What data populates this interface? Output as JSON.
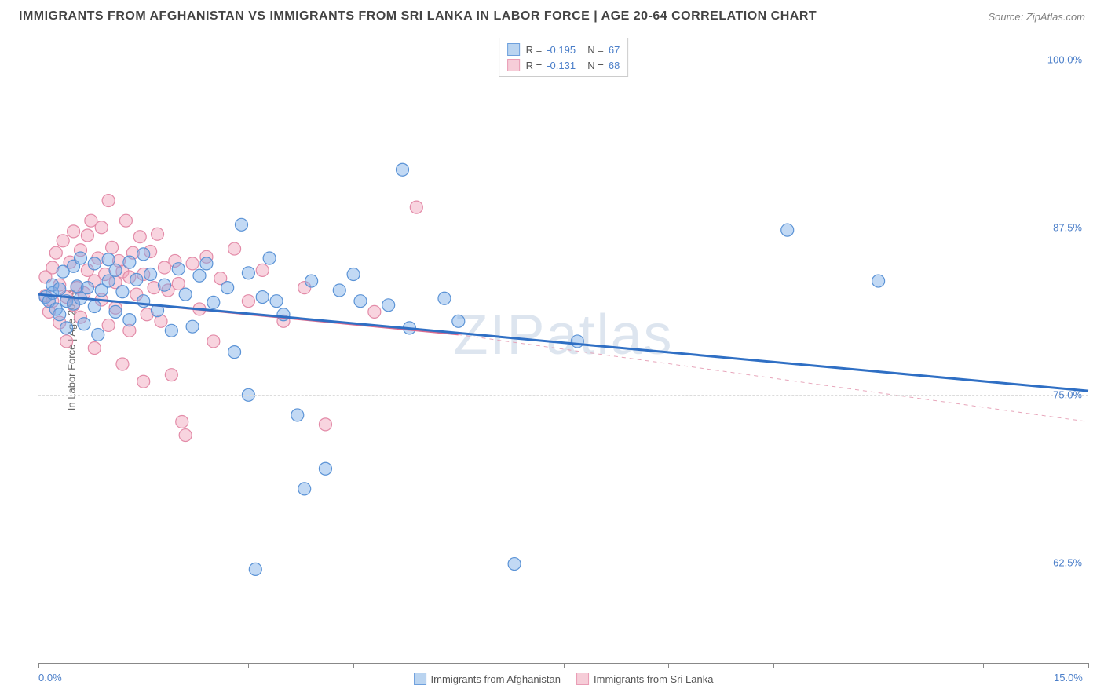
{
  "title": "IMMIGRANTS FROM AFGHANISTAN VS IMMIGRANTS FROM SRI LANKA IN LABOR FORCE | AGE 20-64 CORRELATION CHART",
  "source": "Source: ZipAtlas.com",
  "y_axis_label": "In Labor Force | Age 20-64",
  "watermark": "ZIPatlas",
  "chart": {
    "type": "scatter",
    "x_range": [
      0,
      15
    ],
    "y_range": [
      55,
      102
    ],
    "x_ticks": [
      0,
      1.5,
      3.0,
      4.5,
      6.0,
      7.5,
      9.0,
      10.5,
      12.0,
      13.5,
      15.0
    ],
    "x_tick_labels": {
      "0": "0.0%",
      "15": "15.0%"
    },
    "y_gridlines": [
      62.5,
      75.0,
      87.5,
      100.0
    ],
    "y_tick_labels": [
      "62.5%",
      "75.0%",
      "87.5%",
      "100.0%"
    ],
    "background_color": "#ffffff",
    "grid_color": "#dcdcdc",
    "axis_color": "#888888",
    "marker_radius": 8,
    "marker_opacity": 0.55
  },
  "series": [
    {
      "name": "Immigrants from Afghanistan",
      "color_fill": "rgba(120,170,230,0.45)",
      "color_stroke": "#5b93d6",
      "legend_swatch_fill": "#bad4f0",
      "legend_swatch_stroke": "#6ea0dd",
      "R": "-0.195",
      "N": "67",
      "trend": {
        "x1": 0,
        "y1": 82.5,
        "x2": 15,
        "y2": 75.3,
        "width": 3,
        "style": "solid",
        "color": "#2f6fc4"
      },
      "points": [
        [
          0.1,
          82.3
        ],
        [
          0.15,
          82.0
        ],
        [
          0.2,
          82.6
        ],
        [
          0.2,
          83.2
        ],
        [
          0.25,
          81.4
        ],
        [
          0.3,
          82.9
        ],
        [
          0.3,
          81.0
        ],
        [
          0.35,
          84.2
        ],
        [
          0.4,
          82.0
        ],
        [
          0.4,
          80.0
        ],
        [
          0.5,
          84.6
        ],
        [
          0.5,
          81.8
        ],
        [
          0.55,
          83.1
        ],
        [
          0.6,
          85.2
        ],
        [
          0.6,
          82.2
        ],
        [
          0.65,
          80.3
        ],
        [
          0.7,
          83.0
        ],
        [
          0.8,
          84.8
        ],
        [
          0.8,
          81.6
        ],
        [
          0.85,
          79.5
        ],
        [
          0.9,
          82.8
        ],
        [
          1.0,
          85.1
        ],
        [
          1.0,
          83.5
        ],
        [
          1.1,
          84.3
        ],
        [
          1.1,
          81.2
        ],
        [
          1.2,
          82.7
        ],
        [
          1.3,
          84.9
        ],
        [
          1.3,
          80.6
        ],
        [
          1.4,
          83.6
        ],
        [
          1.5,
          85.5
        ],
        [
          1.5,
          82.0
        ],
        [
          1.6,
          84.0
        ],
        [
          1.7,
          81.3
        ],
        [
          1.8,
          83.2
        ],
        [
          1.9,
          79.8
        ],
        [
          2.0,
          84.4
        ],
        [
          2.1,
          82.5
        ],
        [
          2.2,
          80.1
        ],
        [
          2.3,
          83.9
        ],
        [
          2.4,
          84.8
        ],
        [
          2.5,
          81.9
        ],
        [
          2.7,
          83.0
        ],
        [
          2.8,
          78.2
        ],
        [
          2.9,
          87.7
        ],
        [
          3.0,
          75.0
        ],
        [
          3.0,
          84.1
        ],
        [
          3.1,
          62.0
        ],
        [
          3.2,
          82.3
        ],
        [
          3.3,
          85.2
        ],
        [
          3.5,
          81.0
        ],
        [
          3.7,
          73.5
        ],
        [
          3.8,
          68.0
        ],
        [
          3.9,
          83.5
        ],
        [
          4.1,
          69.5
        ],
        [
          4.3,
          82.8
        ],
        [
          4.5,
          84.0
        ],
        [
          4.6,
          82.0
        ],
        [
          5.0,
          81.7
        ],
        [
          5.2,
          91.8
        ],
        [
          5.3,
          80.0
        ],
        [
          5.8,
          82.2
        ],
        [
          6.0,
          80.5
        ],
        [
          6.8,
          62.4
        ],
        [
          7.7,
          79.0
        ],
        [
          10.7,
          87.3
        ],
        [
          12.0,
          83.5
        ],
        [
          3.4,
          82.0
        ]
      ]
    },
    {
      "name": "Immigrants from Sri Lanka",
      "color_fill": "rgba(240,160,185,0.45)",
      "color_stroke": "#e38ba8",
      "legend_swatch_fill": "#f6cdd8",
      "legend_swatch_stroke": "#e99cb5",
      "R": "-0.131",
      "N": "68",
      "trend_solid": {
        "x1": 0,
        "y1": 82.5,
        "x2": 6.0,
        "y2": 79.5,
        "width": 2,
        "color": "#d96b8f"
      },
      "trend_dash": {
        "x1": 6.0,
        "y1": 79.5,
        "x2": 15,
        "y2": 73.0,
        "width": 1,
        "color": "#e7a5ba"
      },
      "points": [
        [
          0.1,
          82.4
        ],
        [
          0.1,
          83.8
        ],
        [
          0.15,
          81.2
        ],
        [
          0.2,
          84.5
        ],
        [
          0.2,
          82.0
        ],
        [
          0.25,
          85.6
        ],
        [
          0.3,
          80.4
        ],
        [
          0.3,
          83.2
        ],
        [
          0.35,
          86.5
        ],
        [
          0.4,
          82.3
        ],
        [
          0.4,
          79.0
        ],
        [
          0.45,
          84.9
        ],
        [
          0.5,
          81.7
        ],
        [
          0.5,
          87.2
        ],
        [
          0.55,
          83.0
        ],
        [
          0.6,
          85.8
        ],
        [
          0.6,
          80.8
        ],
        [
          0.65,
          82.6
        ],
        [
          0.7,
          84.3
        ],
        [
          0.7,
          86.9
        ],
        [
          0.75,
          88.0
        ],
        [
          0.8,
          83.5
        ],
        [
          0.8,
          78.5
        ],
        [
          0.85,
          85.2
        ],
        [
          0.9,
          87.5
        ],
        [
          0.9,
          82.1
        ],
        [
          0.95,
          84.0
        ],
        [
          1.0,
          89.5
        ],
        [
          1.0,
          80.2
        ],
        [
          1.05,
          86.0
        ],
        [
          1.1,
          83.4
        ],
        [
          1.1,
          81.5
        ],
        [
          1.15,
          85.0
        ],
        [
          1.2,
          77.3
        ],
        [
          1.2,
          84.2
        ],
        [
          1.25,
          88.0
        ],
        [
          1.3,
          83.8
        ],
        [
          1.3,
          79.8
        ],
        [
          1.35,
          85.6
        ],
        [
          1.4,
          82.5
        ],
        [
          1.45,
          86.8
        ],
        [
          1.5,
          76.0
        ],
        [
          1.5,
          84.0
        ],
        [
          1.55,
          81.0
        ],
        [
          1.6,
          85.7
        ],
        [
          1.65,
          83.0
        ],
        [
          1.7,
          87.0
        ],
        [
          1.75,
          80.5
        ],
        [
          1.8,
          84.5
        ],
        [
          1.85,
          82.8
        ],
        [
          1.9,
          76.5
        ],
        [
          1.95,
          85.0
        ],
        [
          2.0,
          83.3
        ],
        [
          2.05,
          73.0
        ],
        [
          2.1,
          72.0
        ],
        [
          2.2,
          84.8
        ],
        [
          2.3,
          81.4
        ],
        [
          2.4,
          85.3
        ],
        [
          2.5,
          79.0
        ],
        [
          2.6,
          83.7
        ],
        [
          2.8,
          85.9
        ],
        [
          3.0,
          82.0
        ],
        [
          3.2,
          84.3
        ],
        [
          3.5,
          80.5
        ],
        [
          3.8,
          83.0
        ],
        [
          4.1,
          72.8
        ],
        [
          4.8,
          81.2
        ],
        [
          5.4,
          89.0
        ]
      ]
    }
  ],
  "legend_top_rows": [
    0,
    1
  ],
  "legend_bottom_items": [
    0,
    1
  ]
}
